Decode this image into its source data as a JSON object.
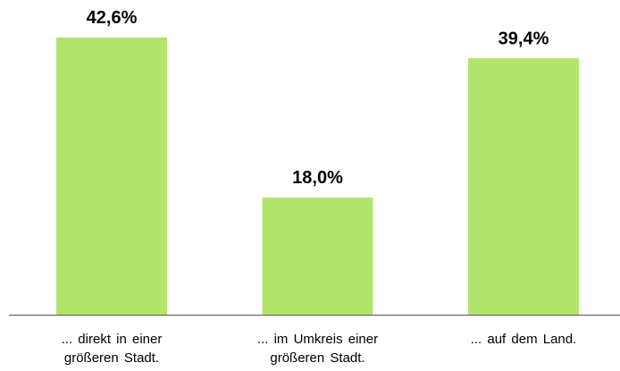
{
  "chart_data": {
    "type": "bar",
    "categories": [
      "... direkt in einer\ngrößeren Stadt.",
      "... im Umkreis einer\ngrößeren Stadt.",
      "... auf dem Land."
    ],
    "values": [
      42.6,
      18.0,
      39.4
    ],
    "value_labels": [
      "42,6%",
      "18,0%",
      "39,4%"
    ],
    "color": "#b3e46b"
  }
}
